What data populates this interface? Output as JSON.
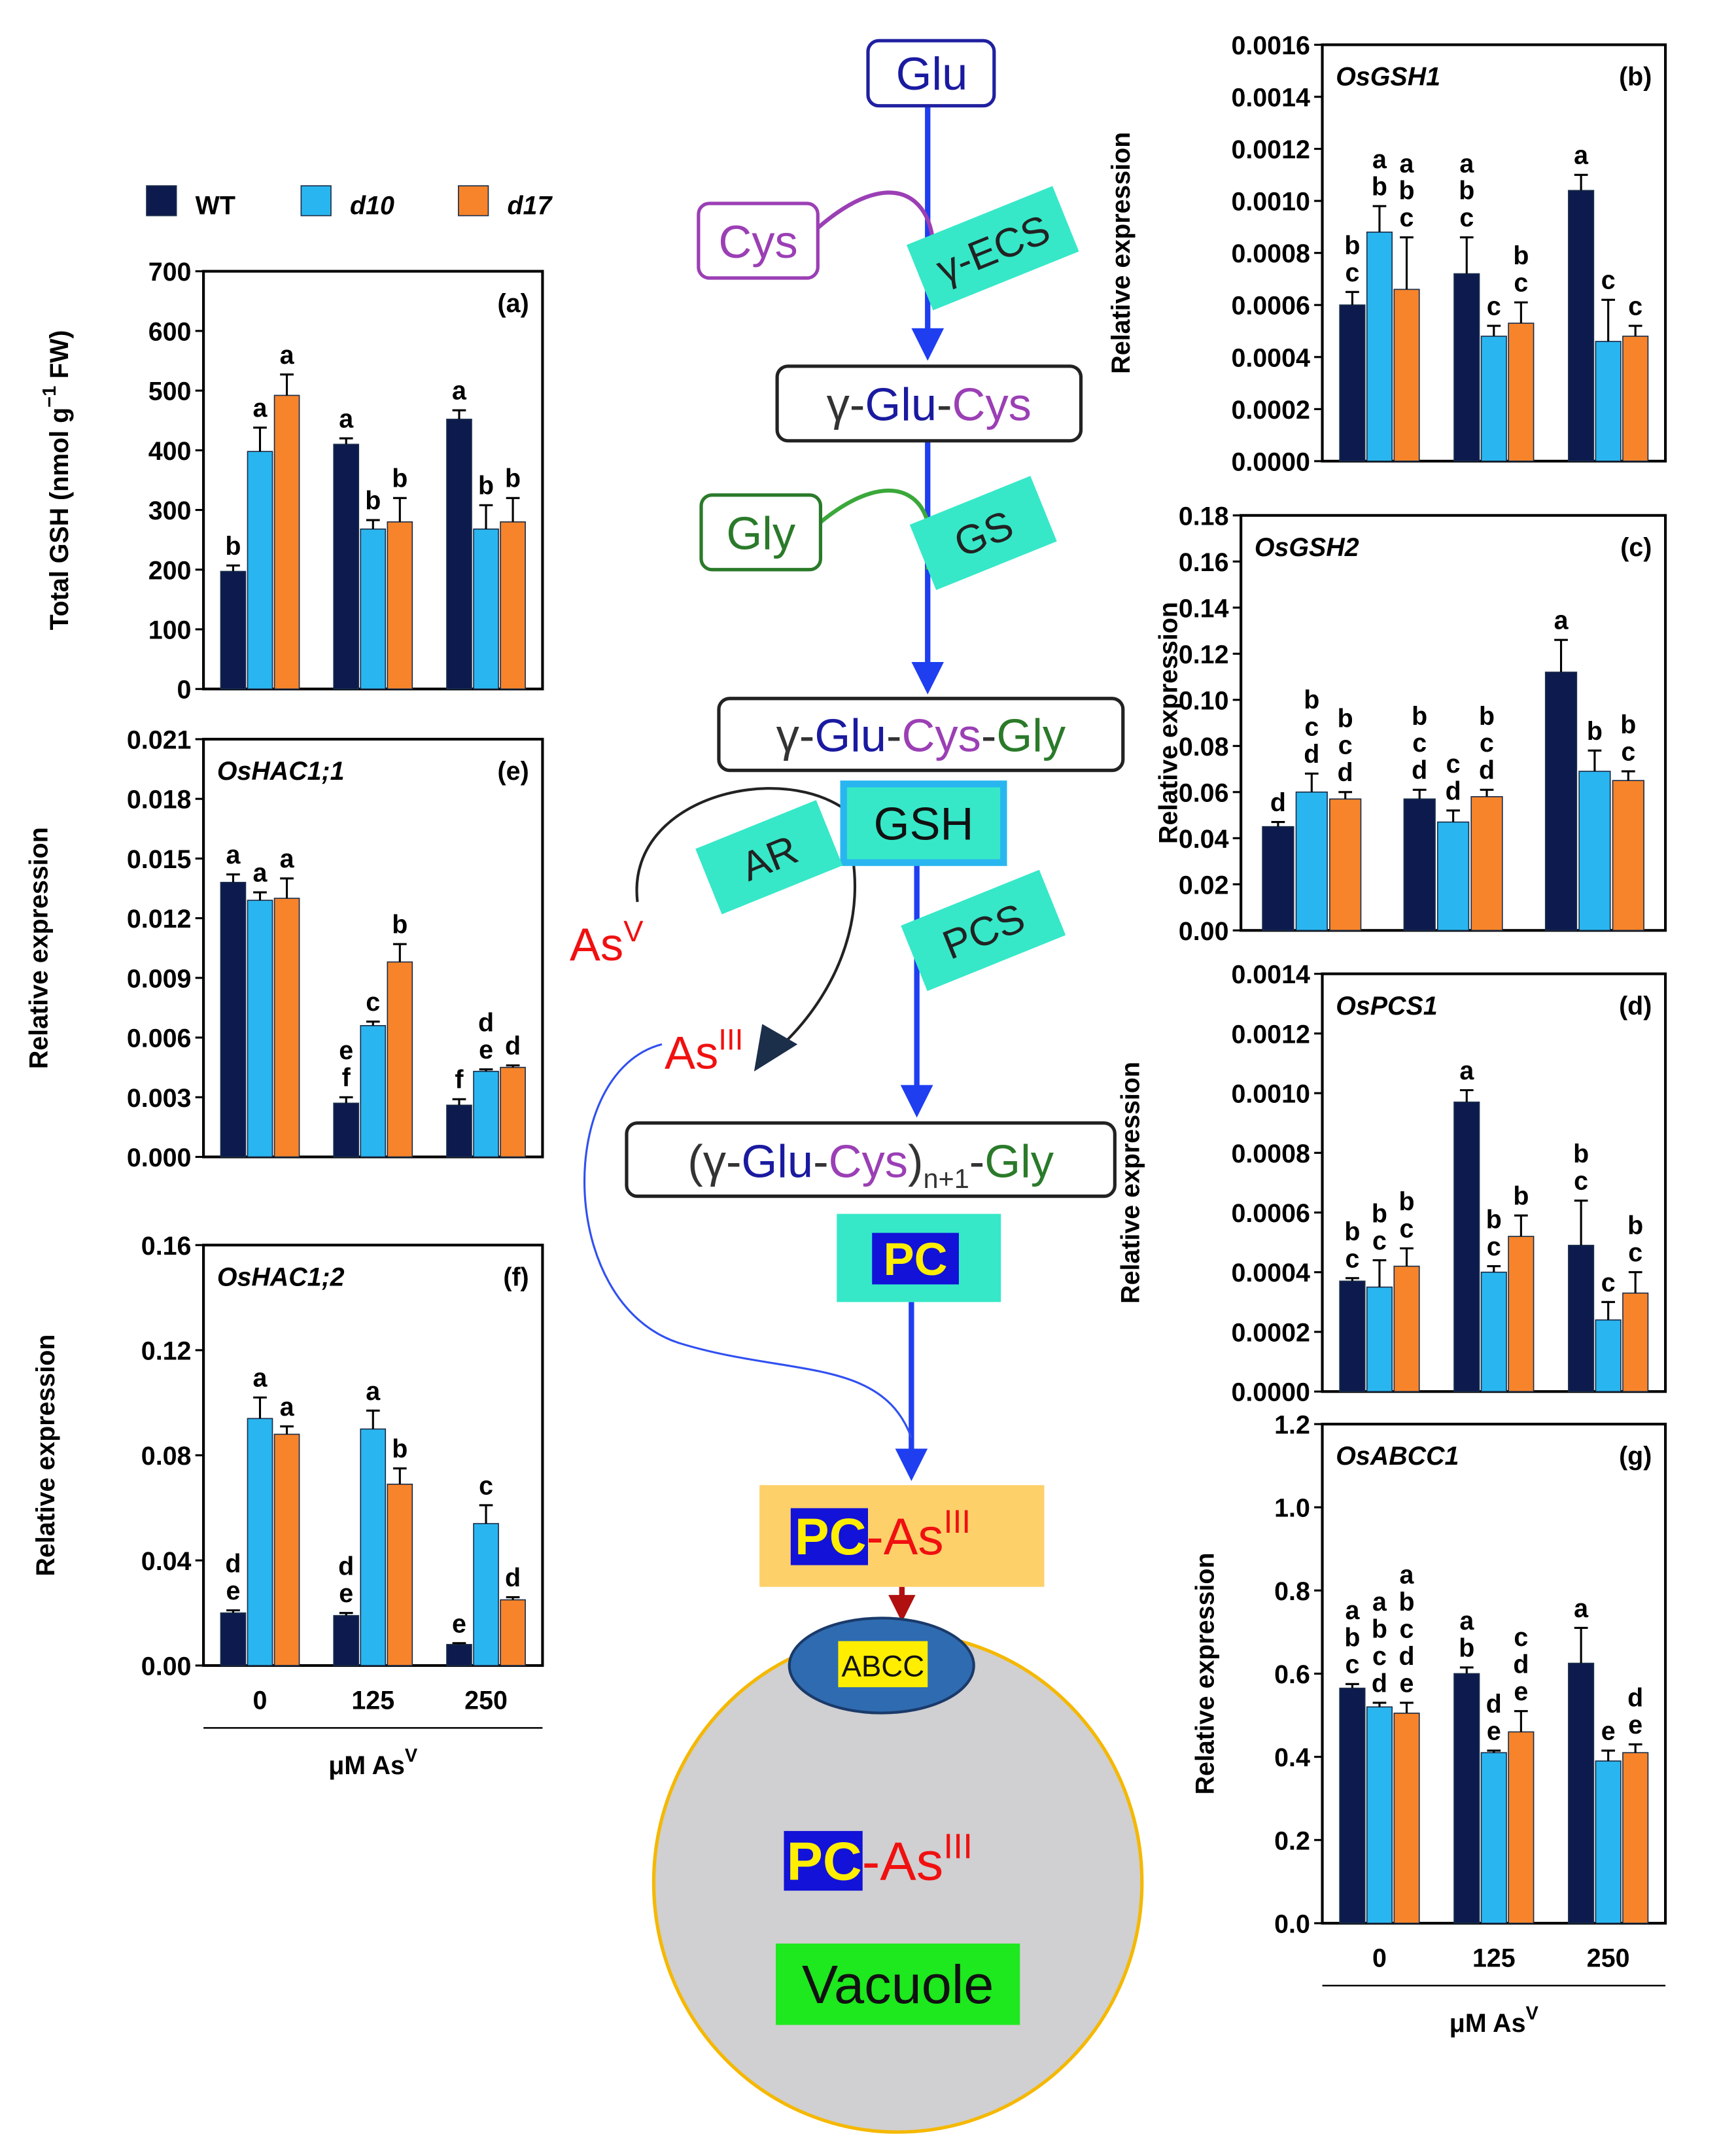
{
  "chart_data": [
    {
      "type": "bar",
      "panel_label": "(a)",
      "y_label": [
        "Total GSH (nmol g",
        "−1",
        " FW)"
      ],
      "categories": [
        null,
        null,
        null
      ],
      "ylim": [
        0,
        700
      ],
      "yticks": [
        0,
        100,
        200,
        300,
        400,
        500,
        600,
        700
      ],
      "series": [
        {
          "name": "WT",
          "color": "#0c1a4d",
          "values": [
            197,
            410,
            452
          ],
          "errors": [
            10,
            10,
            15
          ],
          "letters": [
            [
              "b"
            ],
            [
              "a"
            ],
            [
              "a"
            ]
          ]
        },
        {
          "name": "d10",
          "color": "#29b6f0",
          "values": [
            398,
            268,
            268
          ],
          "errors": [
            40,
            15,
            40
          ],
          "letters": [
            [
              "a"
            ],
            [
              "b"
            ],
            [
              "b"
            ]
          ]
        },
        {
          "name": "d17",
          "color": "#f7842a",
          "values": [
            492,
            280,
            280
          ],
          "errors": [
            35,
            40,
            40
          ],
          "letters": [
            [
              "a"
            ],
            [
              "b"
            ],
            [
              "b"
            ]
          ]
        }
      ]
    },
    {
      "type": "bar",
      "title": "OsGSH1",
      "panel_label": "(b)",
      "y_label": "Relative expression",
      "categories": [
        null,
        null,
        null
      ],
      "ylim": [
        0,
        0.0016
      ],
      "yticks": [
        {
          "value": 0,
          "label": "0.0000"
        },
        0.0002,
        0.0004,
        0.0006,
        0.0008,
        {
          "value": 0.001,
          "label": "0.0010"
        },
        0.0012,
        0.0014,
        0.0016
      ],
      "series": [
        {
          "color": "#0c1a4d",
          "values": [
            0.0006,
            0.00072,
            0.00104
          ],
          "errors": [
            5e-05,
            0.00014,
            6e-05
          ],
          "letters": [
            [
              "b",
              "c"
            ],
            [
              "a",
              "b",
              "c"
            ],
            [
              "a"
            ]
          ]
        },
        {
          "color": "#29b6f0",
          "values": [
            0.00088,
            0.00048,
            0.00046
          ],
          "errors": [
            0.0001,
            4e-05,
            0.00016
          ],
          "letters": [
            [
              "a",
              "b"
            ],
            [
              "c"
            ],
            [
              "c"
            ]
          ]
        },
        {
          "color": "#f7842a",
          "values": [
            0.00066,
            0.00053,
            0.00048
          ],
          "errors": [
            0.0002,
            8e-05,
            4e-05
          ],
          "letters": [
            [
              "a",
              "b",
              "c"
            ],
            [
              "b",
              "c"
            ],
            [
              "c"
            ]
          ]
        }
      ]
    },
    {
      "type": "bar",
      "title": "OsGSH2",
      "panel_label": "(c)",
      "y_label": "Relative expression",
      "categories": [
        null,
        null,
        null
      ],
      "ylim": [
        0,
        0.18
      ],
      "yticks": [
        {
          "value": 0,
          "label": "0.00"
        },
        0.02,
        0.04,
        0.06,
        0.08,
        {
          "value": 0.1,
          "label": "0.10"
        },
        0.12,
        0.14,
        0.16,
        0.18
      ],
      "series": [
        {
          "color": "#0c1a4d",
          "values": [
            0.045,
            0.057,
            0.112
          ],
          "errors": [
            0.002,
            0.004,
            0.014
          ],
          "letters": [
            [
              "d"
            ],
            [
              "b",
              "c",
              "d"
            ],
            [
              "a"
            ]
          ]
        },
        {
          "color": "#29b6f0",
          "values": [
            0.06,
            0.047,
            0.069
          ],
          "errors": [
            0.008,
            0.005,
            0.009
          ],
          "letters": [
            [
              "b",
              "c",
              "d"
            ],
            [
              "c",
              "d"
            ],
            [
              "b"
            ]
          ]
        },
        {
          "color": "#f7842a",
          "values": [
            0.057,
            0.058,
            0.065
          ],
          "errors": [
            0.003,
            0.003,
            0.004
          ],
          "letters": [
            [
              "b",
              "c",
              "d"
            ],
            [
              "b",
              "c",
              "d"
            ],
            [
              "b",
              "c"
            ]
          ]
        }
      ]
    },
    {
      "type": "bar",
      "title": "OsPCS1",
      "panel_label": "(d)",
      "y_label": "Relative expression",
      "categories": [
        null,
        null,
        null
      ],
      "ylim": [
        0,
        0.0014
      ],
      "yticks": [
        {
          "value": 0,
          "label": "0.0000"
        },
        0.0002,
        0.0004,
        0.0006,
        0.0008,
        {
          "value": 0.001,
          "label": "0.0010"
        },
        0.0012,
        0.0014
      ],
      "series": [
        {
          "color": "#0c1a4d",
          "values": [
            0.00037,
            0.00097,
            0.00049
          ],
          "errors": [
            1e-05,
            4e-05,
            0.00015
          ],
          "letters": [
            [
              "b",
              "c"
            ],
            [
              "a"
            ],
            [
              "b",
              "c"
            ]
          ]
        },
        {
          "color": "#29b6f0",
          "values": [
            0.00035,
            0.0004,
            0.00024
          ],
          "errors": [
            9e-05,
            2e-05,
            6e-05
          ],
          "letters": [
            [
              "b",
              "c"
            ],
            [
              "b",
              "c"
            ],
            [
              "c"
            ]
          ]
        },
        {
          "color": "#f7842a",
          "values": [
            0.00042,
            0.00052,
            0.00033
          ],
          "errors": [
            6e-05,
            7e-05,
            7e-05
          ],
          "letters": [
            [
              "b",
              "c"
            ],
            [
              "b"
            ],
            [
              "b",
              "c"
            ]
          ]
        }
      ]
    },
    {
      "type": "bar",
      "title": "OsHAC1;1",
      "panel_label": "(e)",
      "y_label": "Relative expression",
      "categories": [
        null,
        null,
        null
      ],
      "ylim": [
        0,
        0.021
      ],
      "yticks": [
        {
          "value": 0,
          "label": "0.000"
        },
        0.003,
        0.006,
        0.009,
        0.012,
        0.015,
        0.018,
        0.021
      ],
      "series": [
        {
          "color": "#0c1a4d",
          "values": [
            0.0138,
            0.0027,
            0.0026
          ],
          "errors": [
            0.0004,
            0.0003,
            0.0003
          ],
          "letters": [
            [
              "a"
            ],
            [
              "e",
              "f"
            ],
            [
              "f"
            ]
          ]
        },
        {
          "color": "#29b6f0",
          "values": [
            0.0129,
            0.0066,
            0.0043
          ],
          "errors": [
            0.0004,
            0.0002,
            0.0001
          ],
          "letters": [
            [
              "a"
            ],
            [
              "c"
            ],
            [
              "d",
              "e"
            ]
          ]
        },
        {
          "color": "#f7842a",
          "values": [
            0.013,
            0.0098,
            0.0045
          ],
          "errors": [
            0.001,
            0.0009,
            0.0001
          ],
          "letters": [
            [
              "a"
            ],
            [
              "b"
            ],
            [
              "d"
            ]
          ]
        }
      ]
    },
    {
      "type": "bar",
      "title": "OsHAC1;2",
      "panel_label": "(f)",
      "y_label": "Relative expression",
      "categories": [
        "0",
        "125",
        "250"
      ],
      "x_label": [
        "μM As",
        "V"
      ],
      "ylim": [
        0,
        0.16
      ],
      "yticks": [
        {
          "value": 0,
          "label": "0.00"
        },
        0.04,
        0.08,
        0.12,
        0.16
      ],
      "series": [
        {
          "color": "#0c1a4d",
          "values": [
            0.02,
            0.019,
            0.008
          ],
          "errors": [
            0.001,
            0.001,
            0.0005
          ],
          "letters": [
            [
              "d",
              "e"
            ],
            [
              "d",
              "e"
            ],
            [
              "e"
            ]
          ]
        },
        {
          "color": "#29b6f0",
          "values": [
            0.094,
            0.09,
            0.054
          ],
          "errors": [
            0.008,
            0.007,
            0.007
          ],
          "letters": [
            [
              "a"
            ],
            [
              "a"
            ],
            [
              "c"
            ]
          ]
        },
        {
          "color": "#f7842a",
          "values": [
            0.088,
            0.069,
            0.025
          ],
          "errors": [
            0.003,
            0.006,
            0.001
          ],
          "letters": [
            [
              "a"
            ],
            [
              "b"
            ],
            [
              "d"
            ]
          ]
        }
      ]
    },
    {
      "type": "bar",
      "title": "OsABCC1",
      "panel_label": "(g)",
      "y_label": "Relative expression",
      "categories": [
        "0",
        "125",
        "250"
      ],
      "x_label": [
        "μM As",
        "V"
      ],
      "ylim": [
        0,
        1.2
      ],
      "yticks": [
        {
          "value": 0,
          "label": "0.0"
        },
        0.2,
        0.4,
        0.6,
        0.8,
        {
          "value": 1,
          "label": "1.0"
        },
        1.2
      ],
      "series": [
        {
          "color": "#0c1a4d",
          "values": [
            0.565,
            0.6,
            0.625
          ],
          "errors": [
            0.01,
            0.015,
            0.085
          ],
          "letters": [
            [
              "a",
              "b",
              "c"
            ],
            [
              "a",
              "b"
            ],
            [
              "a"
            ]
          ]
        },
        {
          "color": "#29b6f0",
          "values": [
            0.52,
            0.41,
            0.39
          ],
          "errors": [
            0.01,
            0.005,
            0.025
          ],
          "letters": [
            [
              "a",
              "b",
              "c",
              "d"
            ],
            [
              "d",
              "e"
            ],
            [
              "e"
            ]
          ]
        },
        {
          "color": "#f7842a",
          "values": [
            0.505,
            0.46,
            0.41
          ],
          "errors": [
            0.025,
            0.05,
            0.02
          ],
          "letters": [
            [
              "a",
              "b",
              "c",
              "d",
              "e"
            ],
            [
              "c",
              "d",
              "e"
            ],
            [
              "d",
              "e"
            ]
          ]
        }
      ]
    }
  ],
  "diagram": {
    "glu": "Glu",
    "cys": "Cys",
    "gamma_ecs": "γ-ECS",
    "glu_cys": [
      "γ-",
      "Glu",
      "-",
      "Cys"
    ],
    "gly": "Gly",
    "gs": "GS",
    "glu_cys_gly": [
      "γ-",
      "Glu",
      "-",
      "Cys",
      "-",
      "Gly"
    ],
    "gsh": "GSH",
    "ar": "AR",
    "pcs": "PCS",
    "as_v": [
      "As",
      "V"
    ],
    "as_iii": [
      "As",
      "III"
    ],
    "pc_chain": [
      "(γ-",
      "Glu",
      "-",
      "Cys",
      ")",
      "n+1",
      "-",
      "Gly"
    ],
    "pc": "PC",
    "pc_as": [
      "PC",
      "-As",
      "III"
    ],
    "abcc": "ABCC",
    "vacuole_pc_as": [
      "PC",
      "-As",
      "III"
    ],
    "vacuole": "Vacuole"
  }
}
